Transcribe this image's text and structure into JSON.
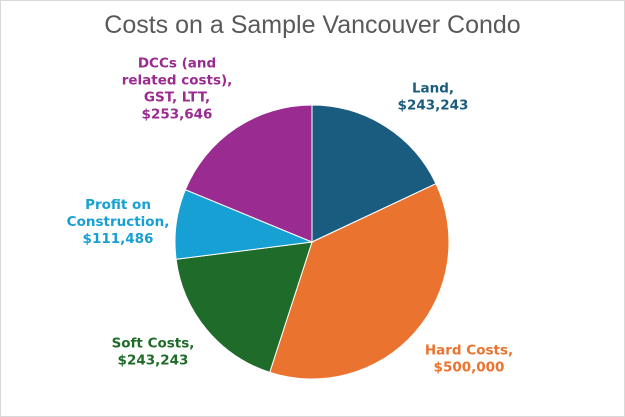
{
  "chart_data": {
    "type": "pie",
    "title": "Costs on a Sample Vancouver Condo",
    "slices": [
      {
        "name": "Land",
        "value": 243243,
        "color": "#1a5c7f",
        "label_lines": [
          "Land,",
          "$243,243"
        ]
      },
      {
        "name": "Hard Costs",
        "value": 500000,
        "color": "#ea7330",
        "label_lines": [
          "Hard Costs,",
          "$500,000"
        ]
      },
      {
        "name": "Soft Costs",
        "value": 243243,
        "color": "#1f6b2a",
        "label_lines": [
          "Soft Costs,",
          "$243,243"
        ]
      },
      {
        "name": "Profit on Construction",
        "value": 111486,
        "color": "#17a0d4",
        "label_lines": [
          "Profit on",
          "Construction,",
          "$111,486"
        ]
      },
      {
        "name": "DCCs (and related costs), GST, LTT",
        "value": 253646,
        "color": "#9a2b91",
        "label_lines": [
          "DCCs (and",
          "related costs),",
          "GST, LTT,",
          "$253,646"
        ]
      }
    ],
    "legend": "none",
    "start_angle": "12 o'clock",
    "direction": "clockwise"
  }
}
